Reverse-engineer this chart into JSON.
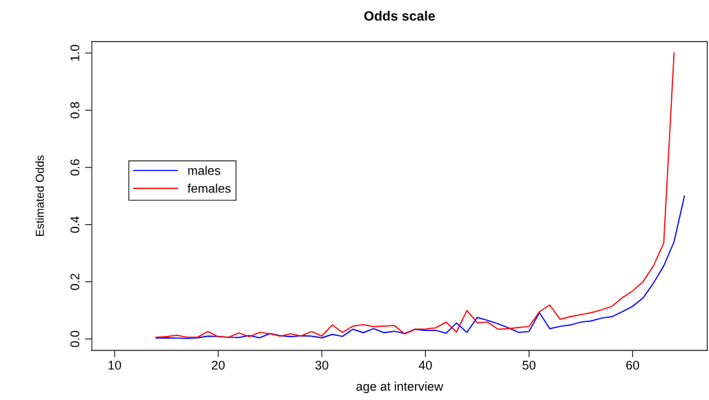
{
  "chart_data": {
    "type": "line",
    "title": "Odds scale",
    "xlabel": "age at interview",
    "ylabel": "Estimated Odds",
    "xlim": [
      7.8,
      67.2
    ],
    "ylim": [
      -0.04,
      1.04
    ],
    "xticks": [
      10,
      20,
      30,
      40,
      50,
      60
    ],
    "yticks": [
      {
        "value": 0,
        "label": "0.0"
      },
      0.2,
      0.4,
      0.6,
      0.8,
      {
        "value": 1,
        "label": "1.0"
      }
    ],
    "grid": false,
    "legend": "left",
    "marker": "none",
    "line_style": "solid",
    "series": [
      {
        "name": "males",
        "color": "#0000ff",
        "x": [
          14,
          15,
          16,
          17,
          18,
          19,
          20,
          21,
          22,
          23,
          24,
          25,
          26,
          27,
          28,
          29,
          30,
          31,
          32,
          33,
          34,
          35,
          36,
          37,
          38,
          39,
          40,
          41,
          42,
          43,
          44,
          45,
          46,
          47,
          48,
          49,
          50,
          51,
          52,
          53,
          54,
          55,
          56,
          57,
          58,
          59,
          60,
          61,
          62,
          63,
          64,
          65
        ],
        "values": [
          0.003,
          0.004,
          0.003,
          0.002,
          0.004,
          0.01,
          0.009,
          0.006,
          0.005,
          0.012,
          0.004,
          0.019,
          0.011,
          0.008,
          0.011,
          0.01,
          0.004,
          0.016,
          0.009,
          0.034,
          0.022,
          0.036,
          0.022,
          0.027,
          0.019,
          0.034,
          0.03,
          0.03,
          0.02,
          0.056,
          0.023,
          0.075,
          0.065,
          0.053,
          0.039,
          0.023,
          0.026,
          0.092,
          0.036,
          0.044,
          0.049,
          0.059,
          0.063,
          0.073,
          0.078,
          0.095,
          0.114,
          0.143,
          0.195,
          0.255,
          0.34,
          0.5
        ]
      },
      {
        "name": "females",
        "color": "#ff0000",
        "x": [
          14,
          15,
          16,
          17,
          18,
          19,
          20,
          21,
          22,
          23,
          24,
          25,
          26,
          27,
          28,
          29,
          30,
          31,
          32,
          33,
          34,
          35,
          36,
          37,
          38,
          39,
          40,
          41,
          42,
          43,
          44,
          45,
          46,
          47,
          48,
          49,
          50,
          51,
          52,
          53,
          54,
          55,
          56,
          57,
          58,
          59,
          60,
          61,
          62,
          63,
          64
        ],
        "values": [
          0.006,
          0.008,
          0.013,
          0.006,
          0.006,
          0.026,
          0.008,
          0.006,
          0.021,
          0.008,
          0.023,
          0.018,
          0.01,
          0.018,
          0.01,
          0.026,
          0.01,
          0.049,
          0.023,
          0.045,
          0.05,
          0.043,
          0.045,
          0.047,
          0.018,
          0.034,
          0.035,
          0.039,
          0.059,
          0.024,
          0.1,
          0.057,
          0.059,
          0.034,
          0.036,
          0.04,
          0.044,
          0.095,
          0.119,
          0.069,
          0.078,
          0.085,
          0.092,
          0.102,
          0.114,
          0.144,
          0.168,
          0.2,
          0.255,
          0.335,
          1.0
        ]
      }
    ]
  }
}
